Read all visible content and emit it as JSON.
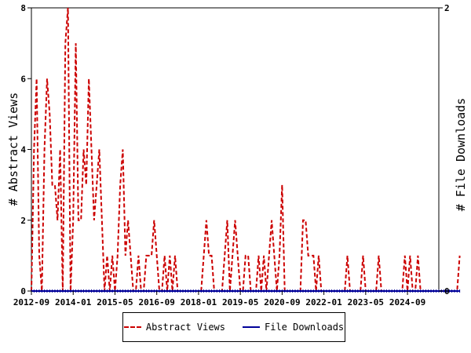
{
  "chart_data": {
    "type": "line",
    "title": "",
    "ylabel": "# Abstract Views",
    "y2label": "# File Downloads",
    "ylim": [
      0,
      8
    ],
    "y2lim": [
      0,
      2
    ],
    "yticks": [
      "0",
      "2",
      "4",
      "6",
      "8"
    ],
    "y2ticks": [
      "0",
      "2"
    ],
    "xtick_labels": [
      "2012-09",
      "2014-01",
      "2015-05",
      "2016-09",
      "2018-01",
      "2019-05",
      "2020-09",
      "2022-01",
      "2023-05",
      "2024-09"
    ],
    "x_start": "2012-09",
    "x_end": "2025-09",
    "series": [
      {
        "name": "Abstract Views",
        "color": "#cc0000",
        "style": "dashed",
        "axis": "left",
        "values": [
          0,
          4,
          6,
          1,
          0,
          4,
          6,
          5,
          3,
          3,
          2,
          4,
          0,
          7,
          8,
          0,
          2,
          7,
          2,
          2,
          4,
          3,
          6,
          4,
          2,
          3,
          4,
          2,
          0,
          1,
          0,
          1,
          0,
          1,
          3,
          4,
          1,
          2,
          1,
          0,
          0,
          1,
          0,
          0,
          1,
          1,
          1,
          2,
          1,
          0,
          0,
          1,
          0,
          1,
          0,
          1,
          0,
          0,
          0,
          0,
          0,
          0,
          0,
          0,
          0,
          0,
          1,
          2,
          1,
          1,
          0,
          0,
          0,
          0,
          1,
          2,
          0,
          1,
          2,
          1,
          0,
          0,
          1,
          1,
          0,
          0,
          0,
          1,
          0,
          1,
          0,
          1,
          2,
          1,
          0,
          1,
          3,
          0,
          0,
          0,
          0,
          0,
          0,
          0,
          2,
          2,
          1,
          1,
          1,
          0,
          1,
          0,
          0,
          0,
          0,
          0,
          0,
          0,
          0,
          0,
          0,
          1,
          0,
          0,
          0,
          0,
          0,
          1,
          0,
          0,
          0,
          0,
          0,
          1,
          0,
          0,
          0,
          0,
          0,
          0,
          0,
          0,
          0,
          1,
          0,
          1,
          0,
          0,
          1,
          0,
          0,
          0,
          0,
          0,
          0,
          0,
          0,
          0,
          0,
          0,
          0,
          0,
          0,
          0,
          1
        ]
      },
      {
        "name": "File Downloads",
        "color": "#000099",
        "style": "solid",
        "axis": "right",
        "values": [
          0,
          0,
          0,
          0,
          0,
          0,
          0,
          0,
          0,
          0,
          0,
          0,
          0,
          0,
          0,
          0,
          0,
          0,
          0,
          0,
          0,
          0,
          0,
          0,
          0,
          0,
          0,
          0,
          0,
          0,
          0,
          0,
          0,
          0,
          0,
          0,
          0,
          0,
          0,
          0,
          0,
          0,
          0,
          0,
          0,
          0,
          0,
          0,
          0,
          0,
          0,
          0,
          0,
          0,
          0,
          0,
          0,
          0,
          0,
          0,
          0,
          0,
          0,
          0,
          0,
          0,
          0,
          0,
          0,
          0,
          0,
          0,
          0,
          0,
          0,
          0,
          0,
          0,
          0,
          0,
          0,
          0,
          0,
          0,
          0,
          0,
          0,
          0,
          0,
          0,
          0,
          0,
          0,
          0,
          0,
          0,
          0,
          0,
          0,
          0,
          0,
          0,
          0,
          0,
          0,
          0,
          0,
          0,
          0,
          0,
          0,
          0,
          0,
          0,
          0,
          0,
          0,
          0,
          0,
          0,
          0,
          0,
          0,
          0,
          0,
          0,
          0,
          0,
          0,
          0,
          0,
          0,
          0,
          0,
          0,
          0,
          0,
          0,
          0,
          0,
          0,
          0,
          0,
          0,
          0,
          0,
          0,
          0,
          0,
          0,
          0,
          0,
          0,
          0,
          0,
          0,
          0,
          0,
          0,
          0,
          0,
          0,
          0,
          0,
          0
        ]
      }
    ],
    "legend_position": "bottom",
    "grid": false
  }
}
